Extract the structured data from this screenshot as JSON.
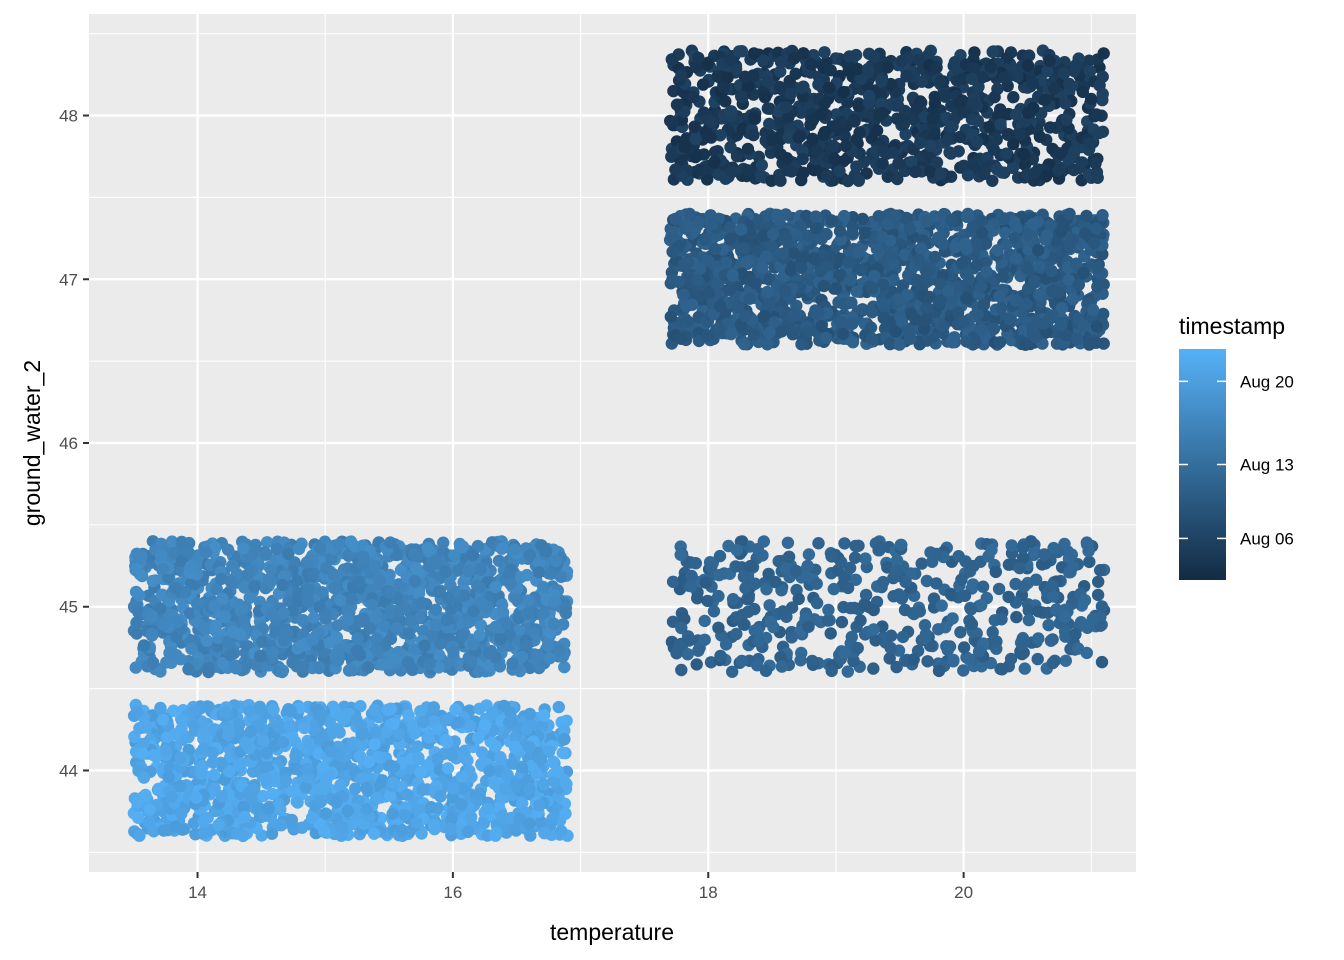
{
  "chart_data": {
    "type": "scatter",
    "xlabel": "temperature",
    "ylabel": "ground_water_2",
    "xlim": [
      13.15,
      21.35
    ],
    "ylim": [
      43.38,
      48.62
    ],
    "x_ticks": [
      14,
      16,
      18,
      20
    ],
    "y_ticks": [
      44,
      45,
      46,
      47,
      48
    ],
    "grid": true,
    "legend": {
      "title": "timestamp",
      "position": "right",
      "labels": [
        "Aug 20",
        "Aug 13",
        "Aug 06"
      ],
      "label_values": [
        0.86,
        0.5,
        0.18
      ],
      "gradient": [
        "#132B43",
        "#56B1F7"
      ]
    },
    "clusters": [
      {
        "x_range": [
          13.5,
          16.9
        ],
        "y_range": [
          44.6,
          45.4
        ],
        "count": 1400,
        "timestamp_level": [
          0.6,
          0.74
        ]
      },
      {
        "x_range": [
          13.5,
          16.9
        ],
        "y_range": [
          43.6,
          44.4
        ],
        "count": 1300,
        "timestamp_level": [
          0.84,
          0.98
        ]
      },
      {
        "x_range": [
          17.7,
          21.1
        ],
        "y_range": [
          47.6,
          48.4
        ],
        "count": 1000,
        "timestamp_level": [
          0.04,
          0.18
        ]
      },
      {
        "x_range": [
          17.7,
          21.1
        ],
        "y_range": [
          46.6,
          47.4
        ],
        "count": 1500,
        "timestamp_level": [
          0.28,
          0.42
        ]
      },
      {
        "x_range": [
          17.7,
          21.1
        ],
        "y_range": [
          44.6,
          45.4
        ],
        "count": 500,
        "timestamp_level": [
          0.36,
          0.48
        ]
      }
    ]
  }
}
